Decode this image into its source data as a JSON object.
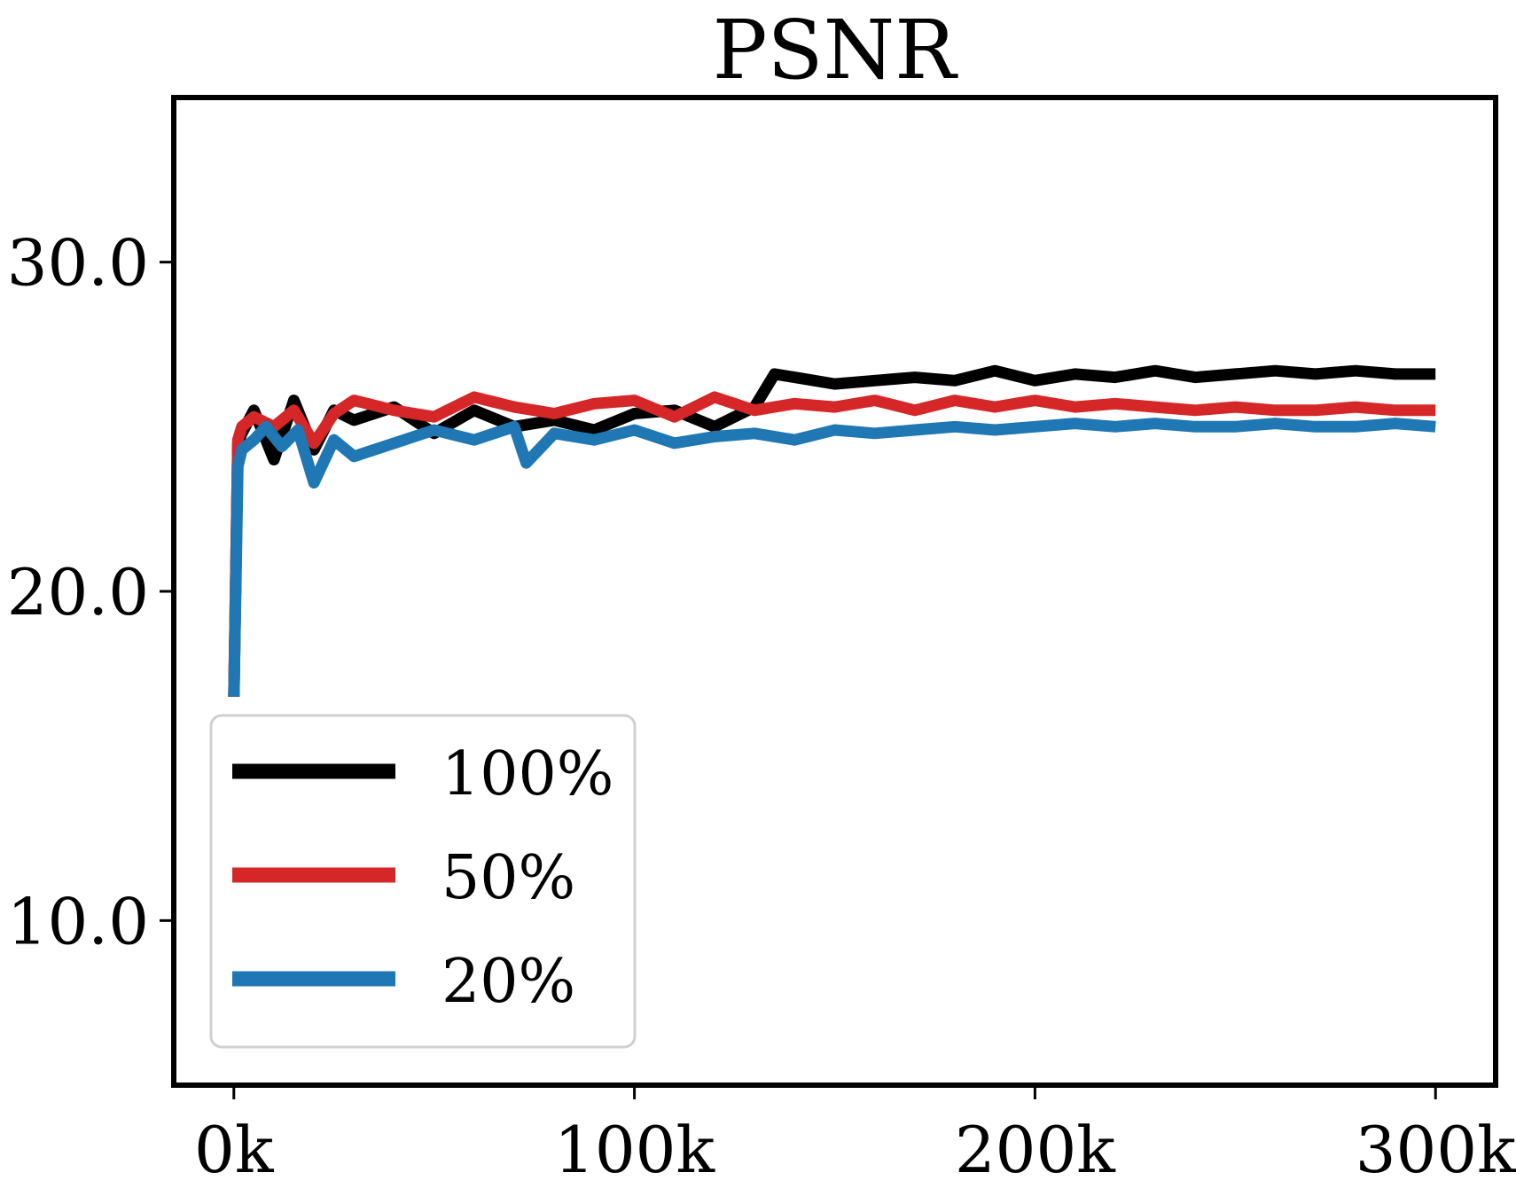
{
  "chart_data": {
    "type": "line",
    "title": "PSNR",
    "xlabel": "",
    "ylabel": "",
    "xlim": [
      -15000,
      315000
    ],
    "ylim": [
      5,
      35
    ],
    "x_ticks": [
      0,
      100000,
      200000,
      300000
    ],
    "x_tick_labels": [
      "0k",
      "100k",
      "200k",
      "300k"
    ],
    "y_ticks": [
      10,
      20,
      30
    ],
    "y_tick_labels": [
      "10.0",
      "20.0",
      "30.0"
    ],
    "grid": false,
    "legend_position": "lower-left",
    "series": [
      {
        "name": "100%",
        "color": "#000000",
        "x": [
          0,
          1000,
          2000,
          5000,
          10000,
          15000,
          20000,
          25000,
          30000,
          40000,
          50000,
          60000,
          70000,
          80000,
          90000,
          100000,
          110000,
          120000,
          130000,
          135000,
          140000,
          150000,
          160000,
          170000,
          180000,
          190000,
          200000,
          210000,
          220000,
          230000,
          240000,
          250000,
          260000,
          270000,
          280000,
          290000,
          300000
        ],
        "y": [
          16.8,
          24.5,
          24.8,
          25.5,
          24.0,
          25.8,
          24.3,
          25.5,
          25.2,
          25.6,
          24.8,
          25.5,
          25.0,
          25.2,
          24.9,
          25.4,
          25.5,
          25.0,
          25.6,
          26.6,
          26.5,
          26.3,
          26.4,
          26.5,
          26.4,
          26.7,
          26.4,
          26.6,
          26.5,
          26.7,
          26.5,
          26.6,
          26.7,
          26.6,
          26.7,
          26.6,
          26.6
        ]
      },
      {
        "name": "50%",
        "color": "#d62728",
        "x": [
          0,
          1000,
          2000,
          5000,
          10000,
          15000,
          20000,
          25000,
          30000,
          40000,
          50000,
          60000,
          70000,
          80000,
          90000,
          100000,
          110000,
          120000,
          130000,
          140000,
          150000,
          160000,
          170000,
          180000,
          190000,
          200000,
          210000,
          220000,
          230000,
          240000,
          250000,
          260000,
          270000,
          280000,
          290000,
          300000
        ],
        "y": [
          16.8,
          24.6,
          25.0,
          25.3,
          25.0,
          25.5,
          24.5,
          25.4,
          25.8,
          25.5,
          25.3,
          25.9,
          25.6,
          25.4,
          25.7,
          25.8,
          25.3,
          25.9,
          25.5,
          25.7,
          25.6,
          25.8,
          25.5,
          25.8,
          25.6,
          25.8,
          25.6,
          25.7,
          25.6,
          25.5,
          25.6,
          25.5,
          25.5,
          25.6,
          25.5,
          25.5
        ]
      },
      {
        "name": "20%",
        "color": "#1f77b4",
        "x": [
          0,
          1000,
          2000,
          5000,
          8000,
          12000,
          16000,
          20000,
          25000,
          30000,
          40000,
          50000,
          60000,
          70000,
          73000,
          80000,
          90000,
          100000,
          110000,
          120000,
          130000,
          140000,
          150000,
          160000,
          170000,
          180000,
          190000,
          200000,
          210000,
          220000,
          230000,
          240000,
          250000,
          260000,
          270000,
          280000,
          290000,
          300000
        ],
        "y": [
          16.8,
          23.8,
          24.3,
          24.6,
          25.0,
          24.4,
          24.9,
          23.3,
          24.6,
          24.1,
          24.5,
          24.9,
          24.6,
          25.0,
          23.9,
          24.8,
          24.6,
          24.9,
          24.5,
          24.7,
          24.8,
          24.6,
          24.9,
          24.8,
          24.9,
          25.0,
          24.9,
          25.0,
          25.1,
          25.0,
          25.1,
          25.0,
          25.0,
          25.1,
          25.0,
          25.0,
          25.1,
          25.0
        ]
      }
    ]
  }
}
